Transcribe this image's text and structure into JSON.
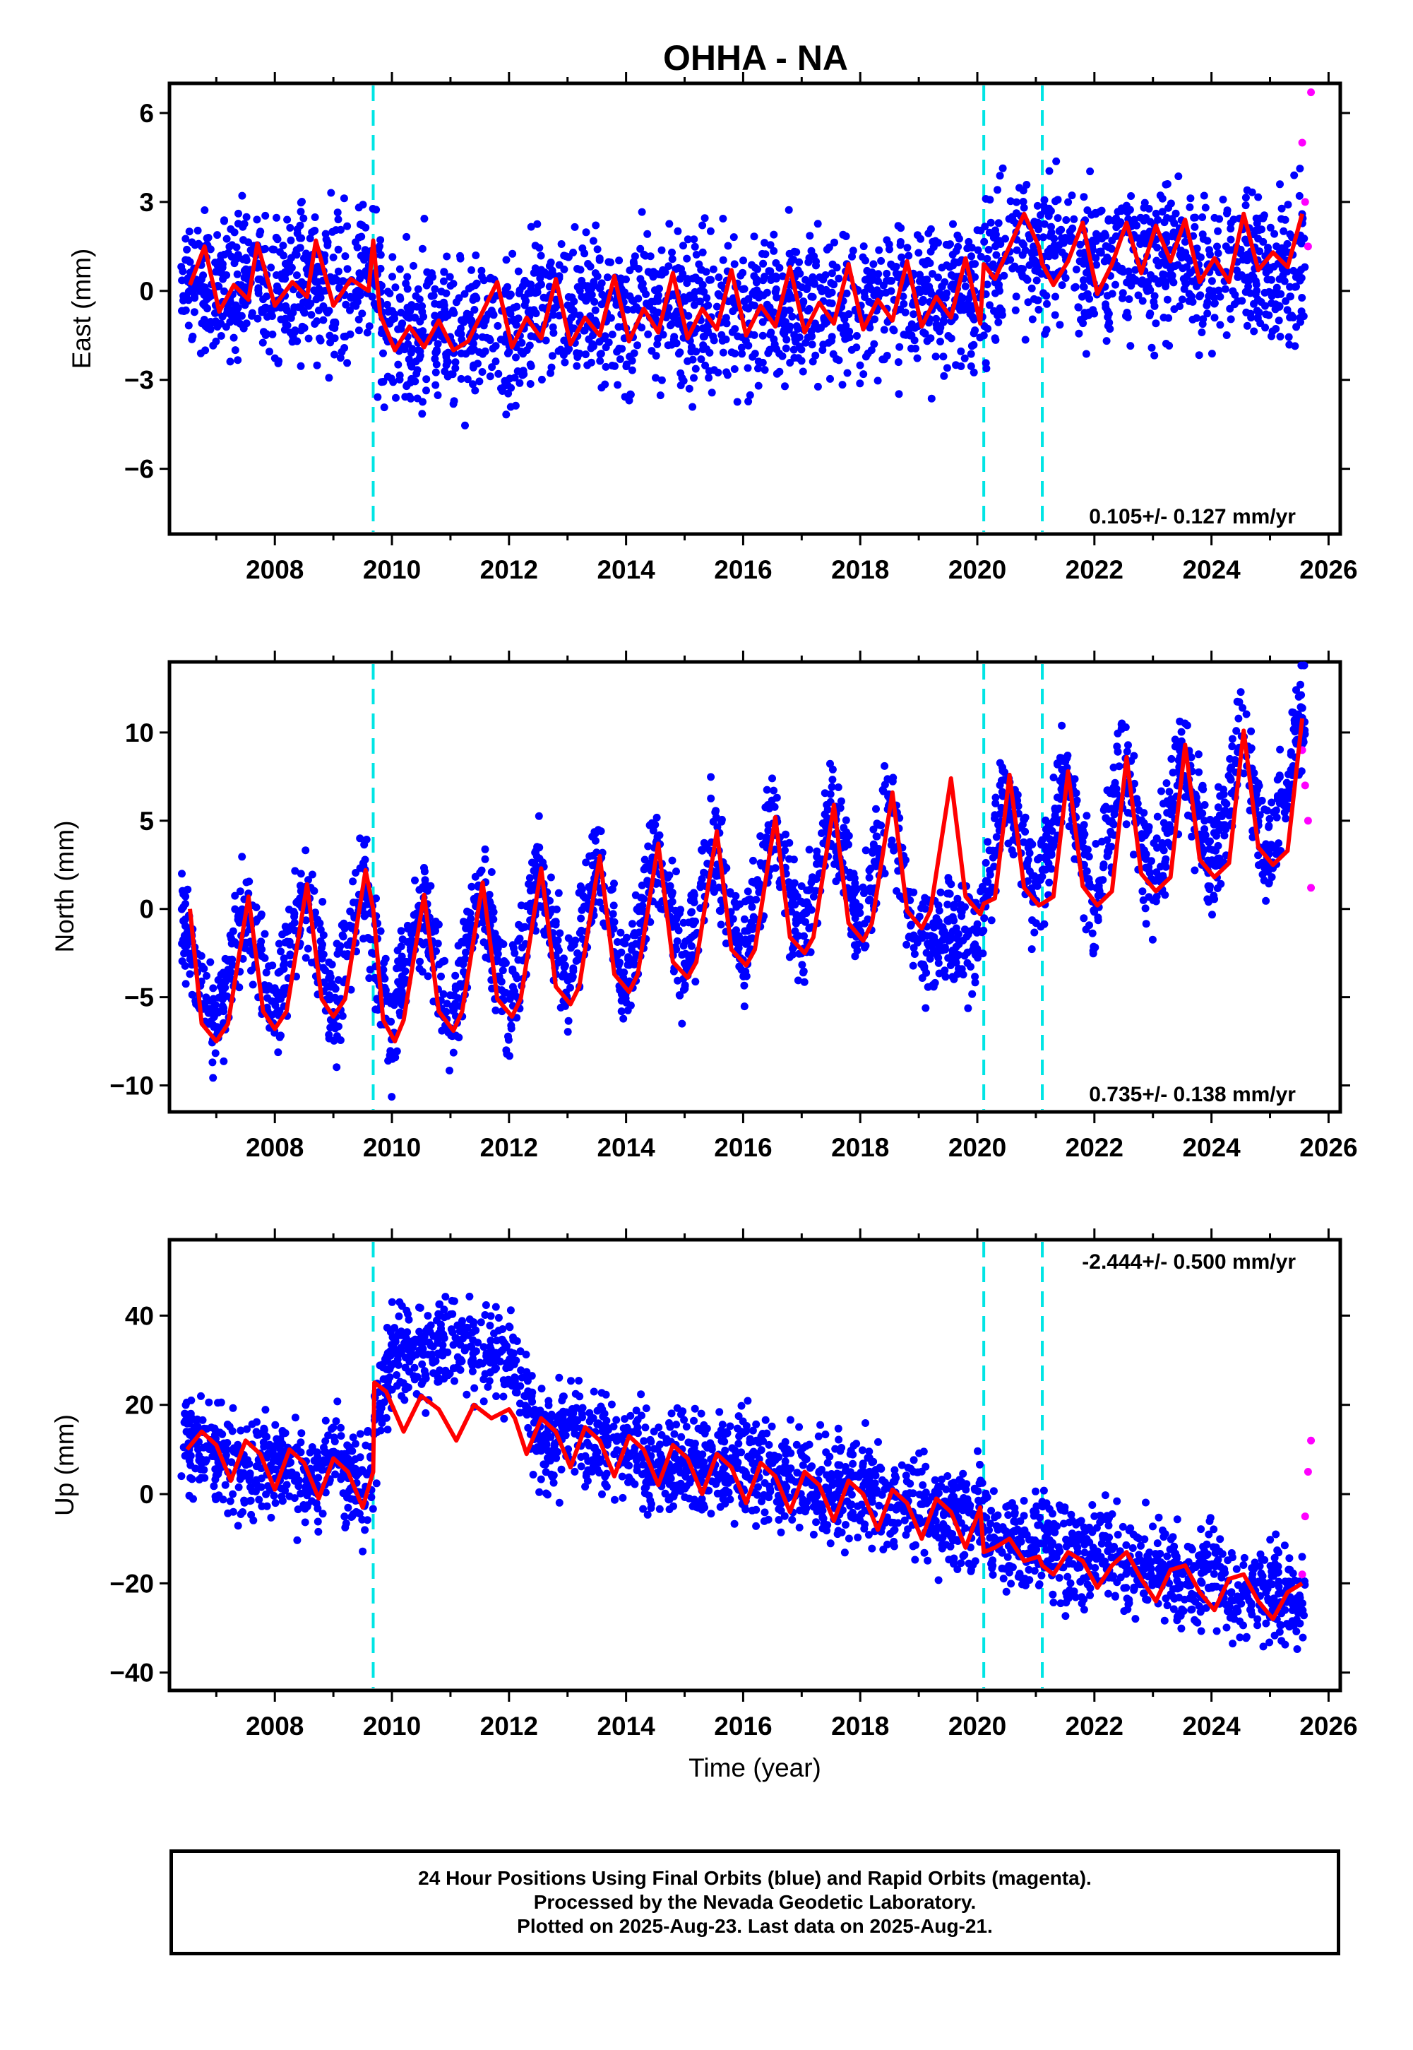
{
  "chart_data": {
    "type": "scatter",
    "title": "OHHA - NA",
    "xlabel": "Time (year)",
    "xlim": [
      2006.2,
      2026.2
    ],
    "x_ticks": [
      "2008",
      "2010",
      "2012",
      "2014",
      "2016",
      "2018",
      "2020",
      "2022",
      "2024",
      "2026"
    ],
    "event_lines": [
      2009.68,
      2020.11,
      2021.11
    ],
    "colors": {
      "final": "#0000ff",
      "rapid": "#ff00ff",
      "model": "#ff0000",
      "events": "#00e5e5"
    },
    "panels": [
      {
        "name": "east",
        "ylabel": "East (mm)",
        "ylim": [
          -8.2,
          7.0
        ],
        "y_ticks": [
          "6",
          "3",
          "0",
          "−3",
          "−6"
        ],
        "rate_label": "0.105+/- 0.127 mm/yr",
        "rate_position": "bottom-right",
        "series": [
          {
            "name": "Final Orbits (blue)",
            "x": [
              2006.5,
              2007.0,
              2007.5,
              2008.0,
              2008.5,
              2009.0,
              2009.5,
              2010.0,
              2010.5,
              2011.0,
              2011.5,
              2012.0,
              2012.5,
              2013.0,
              2013.5,
              2014.0,
              2014.5,
              2015.0,
              2015.5,
              2016.0,
              2016.5,
              2017.0,
              2017.5,
              2018.0,
              2018.5,
              2019.0,
              2019.5,
              2020.0,
              2020.5,
              2021.0,
              2021.5,
              2022.0,
              2022.5,
              2023.0,
              2023.5,
              2024.0,
              2024.5,
              2025.0,
              2025.5
            ],
            "values": [
              0.4,
              0.1,
              0.3,
              0.0,
              0.4,
              0.0,
              0.6,
              -1.3,
              -1.2,
              -1.2,
              -1.0,
              -1.4,
              -0.6,
              -0.9,
              -0.5,
              -0.8,
              -0.5,
              -1.0,
              -0.6,
              -0.9,
              -0.4,
              -0.7,
              -0.3,
              -0.6,
              -0.2,
              -0.5,
              0.0,
              -0.3,
              1.4,
              1.0,
              1.4,
              0.8,
              1.3,
              0.8,
              1.3,
              0.6,
              1.1,
              0.4,
              1.0
            ]
          },
          {
            "name": "Rapid Orbits (magenta)",
            "x": [
              2025.55,
              2025.6,
              2025.65,
              2025.7
            ],
            "values": [
              5.0,
              3.0,
              1.5,
              6.7
            ]
          },
          {
            "name": "model",
            "x": [
              2006.55,
              2006.8,
              2007.05,
              2007.3,
              2007.55,
              2007.7,
              2008.0,
              2008.3,
              2008.55,
              2008.7,
              2009.0,
              2009.3,
              2009.6,
              2009.68,
              2009.8,
              2010.05,
              2010.3,
              2010.55,
              2010.8,
              2011.05,
              2011.3,
              2011.55,
              2011.8,
              2012.05,
              2012.3,
              2012.55,
              2012.8,
              2013.05,
              2013.3,
              2013.55,
              2013.8,
              2014.05,
              2014.3,
              2014.55,
              2014.8,
              2015.05,
              2015.3,
              2015.55,
              2015.8,
              2016.05,
              2016.3,
              2016.55,
              2016.8,
              2017.05,
              2017.3,
              2017.55,
              2017.8,
              2018.05,
              2018.3,
              2018.55,
              2018.8,
              2019.05,
              2019.3,
              2019.55,
              2019.8,
              2020.05,
              2020.11,
              2020.3,
              2020.55,
              2020.8,
              2021.05,
              2021.11,
              2021.3,
              2021.55,
              2021.8,
              2022.05,
              2022.3,
              2022.55,
              2022.8,
              2023.05,
              2023.3,
              2023.55,
              2023.8,
              2024.05,
              2024.3,
              2024.55,
              2024.8,
              2025.05,
              2025.3,
              2025.55
            ],
            "values": [
              0.2,
              1.5,
              -0.7,
              0.2,
              -0.3,
              1.6,
              -0.5,
              0.3,
              -0.2,
              1.7,
              -0.5,
              0.4,
              0.0,
              1.7,
              -0.8,
              -2.0,
              -1.2,
              -1.9,
              -1.0,
              -2.0,
              -1.7,
              -0.7,
              0.3,
              -1.9,
              -0.9,
              -1.6,
              0.4,
              -1.8,
              -0.9,
              -1.5,
              0.5,
              -1.7,
              -0.6,
              -1.4,
              0.6,
              -1.6,
              -0.6,
              -1.3,
              0.7,
              -1.5,
              -0.5,
              -1.2,
              0.8,
              -1.4,
              -0.4,
              -1.1,
              0.9,
              -1.3,
              -0.3,
              -1.0,
              1.0,
              -1.2,
              -0.2,
              -0.9,
              1.1,
              -1.1,
              0.9,
              0.4,
              1.5,
              2.6,
              1.5,
              0.9,
              0.2,
              1.0,
              2.3,
              -0.1,
              0.9,
              2.3,
              0.6,
              2.2,
              1.0,
              2.4,
              0.3,
              1.1,
              0.3,
              2.6,
              0.7,
              1.3,
              0.8,
              2.6
            ]
          }
        ]
      },
      {
        "name": "north",
        "ylabel": "North (mm)",
        "ylim": [
          -11.5,
          14.0
        ],
        "y_ticks": [
          "10",
          "5",
          "0",
          "−5",
          "−10"
        ],
        "rate_label": "0.735+/- 0.138 mm/yr",
        "rate_position": "bottom-right",
        "series": [
          {
            "name": "Final Orbits (blue)",
            "x": [
              2006.5,
              2007.0,
              2007.5,
              2008.0,
              2008.5,
              2009.0,
              2009.5,
              2010.0,
              2010.5,
              2011.0,
              2011.5,
              2012.0,
              2012.5,
              2013.0,
              2013.5,
              2014.0,
              2014.5,
              2015.0,
              2015.5,
              2016.0,
              2016.5,
              2017.0,
              2017.5,
              2018.0,
              2018.5,
              2019.0,
              2019.5,
              2020.0,
              2020.5,
              2021.0,
              2021.5,
              2022.0,
              2022.5,
              2023.0,
              2023.5,
              2024.0,
              2024.5,
              2025.0,
              2025.5
            ],
            "values": [
              -1.0,
              -7.0,
              0.4,
              -6.5,
              1.2,
              -5.8,
              2.0,
              -7.2,
              0.5,
              -6.5,
              1.3,
              -5.5,
              2.1,
              -5.0,
              2.8,
              -4.3,
              3.6,
              -3.6,
              4.3,
              -2.9,
              5.1,
              -2.2,
              5.8,
              -1.5,
              6.5,
              -3.0,
              -1.0,
              -2.0,
              7.5,
              0.5,
              7.6,
              0.2,
              8.4,
              1.0,
              9.1,
              1.8,
              9.9,
              2.6,
              10.5
            ]
          },
          {
            "name": "Rapid Orbits (magenta)",
            "x": [
              2025.55,
              2025.6,
              2025.65,
              2025.7
            ],
            "values": [
              9.0,
              7.0,
              5.0,
              1.2
            ]
          },
          {
            "name": "model",
            "x": [
              2006.55,
              2006.75,
              2007.0,
              2007.2,
              2007.55,
              2007.8,
              2008.0,
              2008.2,
              2008.55,
              2008.8,
              2009.0,
              2009.2,
              2009.55,
              2009.68,
              2009.85,
              2010.05,
              2010.2,
              2010.55,
              2010.8,
              2011.05,
              2011.2,
              2011.55,
              2011.8,
              2012.05,
              2012.2,
              2012.55,
              2012.8,
              2013.05,
              2013.2,
              2013.55,
              2013.8,
              2014.05,
              2014.2,
              2014.55,
              2014.8,
              2015.05,
              2015.2,
              2015.55,
              2015.8,
              2016.05,
              2016.2,
              2016.55,
              2016.8,
              2017.05,
              2017.2,
              2017.55,
              2017.8,
              2018.05,
              2018.2,
              2018.55,
              2018.8,
              2019.05,
              2019.2,
              2019.55,
              2019.8,
              2020.05,
              2020.11,
              2020.3,
              2020.55,
              2020.8,
              2021.05,
              2021.11,
              2021.3,
              2021.55,
              2021.8,
              2022.05,
              2022.3,
              2022.55,
              2022.8,
              2023.05,
              2023.3,
              2023.55,
              2023.8,
              2024.05,
              2024.3,
              2024.55,
              2024.8,
              2025.05,
              2025.3,
              2025.55
            ],
            "values": [
              0.0,
              -6.5,
              -7.5,
              -6.5,
              0.7,
              -5.8,
              -6.8,
              -5.8,
              1.4,
              -5.1,
              -6.1,
              -5.1,
              2.2,
              0.0,
              -6.3,
              -7.5,
              -6.3,
              0.8,
              -5.8,
              -6.9,
              -5.8,
              1.5,
              -5.1,
              -6.1,
              -5.1,
              2.3,
              -4.4,
              -5.4,
              -4.4,
              3.0,
              -3.7,
              -4.7,
              -3.7,
              3.7,
              -3.0,
              -3.9,
              -3.0,
              4.4,
              -2.3,
              -3.2,
              -2.3,
              5.2,
              -1.6,
              -2.5,
              -1.6,
              5.9,
              -0.8,
              -1.8,
              -0.8,
              6.6,
              -0.1,
              -1.1,
              -0.1,
              7.4,
              0.7,
              -0.3,
              0.3,
              0.6,
              7.6,
              1.2,
              0.2,
              0.3,
              0.7,
              7.8,
              1.3,
              0.2,
              1.0,
              8.6,
              2.0,
              1.0,
              1.8,
              9.3,
              2.8,
              1.8,
              2.6,
              10.1,
              3.5,
              2.5,
              3.3,
              10.8
            ]
          }
        ]
      },
      {
        "name": "up",
        "ylabel": "Up (mm)",
        "ylim": [
          -44.0,
          57.0
        ],
        "y_ticks": [
          "40",
          "20",
          "0",
          "−20",
          "−40"
        ],
        "rate_label": "-2.444+/- 0.500 mm/yr",
        "rate_position": "top-right",
        "series": [
          {
            "name": "Final Orbits (blue)",
            "x": [
              2006.5,
              2007.0,
              2007.5,
              2008.0,
              2008.5,
              2009.0,
              2009.5,
              2010.0,
              2010.5,
              2011.0,
              2011.5,
              2012.0,
              2012.5,
              2013.0,
              2013.5,
              2014.0,
              2014.5,
              2015.0,
              2015.5,
              2016.0,
              2016.5,
              2017.0,
              2017.5,
              2018.0,
              2018.5,
              2019.0,
              2019.5,
              2020.0,
              2020.5,
              2021.0,
              2021.5,
              2022.0,
              2022.5,
              2023.0,
              2023.5,
              2024.0,
              2024.5,
              2025.0,
              2025.5
            ],
            "values": [
              12.0,
              9.0,
              4.0,
              10.0,
              2.0,
              8.0,
              0.0,
              32.0,
              30.0,
              35.0,
              33.0,
              30.0,
              12.0,
              14.0,
              10.0,
              12.0,
              7.0,
              9.0,
              5.0,
              7.0,
              3.0,
              5.0,
              0.0,
              2.0,
              -3.0,
              -1.0,
              -6.0,
              -4.0,
              -12.0,
              -10.0,
              -14.0,
              -12.0,
              -17.0,
              -15.0,
              -20.0,
              -18.0,
              -23.0,
              -21.0,
              -27.0
            ]
          },
          {
            "name": "Rapid Orbits (magenta)",
            "x": [
              2025.55,
              2025.6,
              2025.65,
              2025.7
            ],
            "values": [
              -18.0,
              -5.0,
              5.0,
              12.0
            ]
          },
          {
            "name": "model",
            "x": [
              2006.5,
              2006.75,
              2007.0,
              2007.25,
              2007.5,
              2007.75,
              2008.0,
              2008.25,
              2008.5,
              2008.75,
              2009.0,
              2009.25,
              2009.5,
              2009.68,
              2009.7,
              2009.9,
              2010.2,
              2010.5,
              2010.8,
              2011.1,
              2011.4,
              2011.7,
              2012.0,
              2012.1,
              2012.3,
              2012.55,
              2012.8,
              2013.05,
              2013.3,
              2013.55,
              2013.8,
              2014.05,
              2014.3,
              2014.55,
              2014.8,
              2015.05,
              2015.3,
              2015.55,
              2015.8,
              2016.05,
              2016.3,
              2016.55,
              2016.8,
              2017.05,
              2017.3,
              2017.55,
              2017.8,
              2018.05,
              2018.3,
              2018.55,
              2018.8,
              2019.05,
              2019.3,
              2019.55,
              2019.8,
              2020.05,
              2020.11,
              2020.3,
              2020.55,
              2020.8,
              2021.05,
              2021.11,
              2021.3,
              2021.55,
              2021.8,
              2022.05,
              2022.3,
              2022.55,
              2022.8,
              2023.05,
              2023.3,
              2023.55,
              2023.8,
              2024.05,
              2024.3,
              2024.55,
              2024.8,
              2025.05,
              2025.3,
              2025.55
            ],
            "values": [
              10.0,
              14.0,
              11.0,
              3.0,
              12.0,
              9.0,
              1.0,
              10.0,
              7.0,
              -1.0,
              8.0,
              5.0,
              -3.0,
              5.0,
              25.0,
              23.0,
              14.0,
              22.0,
              19.0,
              12.0,
              20.0,
              17.0,
              19.0,
              17.0,
              9.0,
              17.0,
              14.0,
              6.0,
              15.0,
              12.0,
              4.0,
              13.0,
              10.0,
              2.0,
              11.0,
              8.0,
              0.0,
              9.0,
              6.0,
              -2.0,
              7.0,
              4.0,
              -4.0,
              5.0,
              2.0,
              -6.0,
              3.0,
              0.0,
              -8.0,
              1.0,
              -2.0,
              -10.0,
              -1.0,
              -4.0,
              -12.0,
              -3.0,
              -13.0,
              -12.0,
              -10.0,
              -15.0,
              -14.0,
              -16.0,
              -18.0,
              -13.0,
              -15.0,
              -21.0,
              -16.0,
              -13.0,
              -19.0,
              -24.0,
              -17.0,
              -16.0,
              -22.0,
              -26.0,
              -19.0,
              -18.0,
              -24.0,
              -28.0,
              -22.0,
              -20.0
            ]
          }
        ]
      }
    ]
  },
  "footer": {
    "line1": "24 Hour Positions Using Final Orbits (blue) and Rapid Orbits (magenta).",
    "line2": "Processed by the Nevada Geodetic Laboratory.",
    "line3": "Plotted on 2025-Aug-23. Last data on 2025-Aug-21."
  }
}
